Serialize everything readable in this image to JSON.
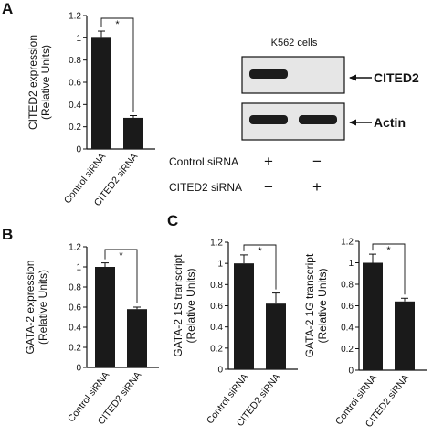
{
  "panels": {
    "A": "A",
    "B": "B",
    "C": "C"
  },
  "colors": {
    "bar": "#1a1a1a",
    "axis": "#111111",
    "blot_bg": "#e6e6e6",
    "band": "#1c1c1c"
  },
  "chart_data": [
    {
      "id": "A",
      "type": "bar",
      "categories": [
        "Control siRNA",
        "CITED2 siRNA"
      ],
      "values": [
        1.0,
        0.28
      ],
      "errors": [
        0.06,
        0.02
      ],
      "ylabel_lines": [
        "CITED2 expression",
        "(Relative Units)"
      ],
      "ylim": [
        0,
        1.2
      ],
      "yticks": [
        "0",
        "0.2",
        "0.4",
        "0.6",
        "0.8",
        "1",
        "1.2"
      ],
      "significance": "*"
    },
    {
      "id": "B",
      "type": "bar",
      "categories": [
        "Control siRNA",
        "CITED2 siRNA"
      ],
      "values": [
        1.0,
        0.58
      ],
      "errors": [
        0.04,
        0.02
      ],
      "ylabel_lines": [
        "GATA-2 expression",
        "(Relative Units)"
      ],
      "ylim": [
        0,
        1.2
      ],
      "yticks": [
        "0",
        "0.2",
        "0.4",
        "0.6",
        "0.8",
        "1",
        "1.2"
      ],
      "significance": "*"
    },
    {
      "id": "C1",
      "type": "bar",
      "categories": [
        "Control siRNA",
        "CITED2 siRNA"
      ],
      "values": [
        1.0,
        0.62
      ],
      "errors": [
        0.08,
        0.1
      ],
      "ylabel_lines": [
        "GATA-2 1S transcript",
        "(Relative Units)"
      ],
      "ylim": [
        0,
        1.2
      ],
      "yticks": [
        "0",
        "0.2",
        "0.4",
        "0.6",
        "0.8",
        "1",
        "1.2"
      ],
      "significance": "*"
    },
    {
      "id": "C2",
      "type": "bar",
      "categories": [
        "Control siRNA",
        "CITED2 siRNA"
      ],
      "values": [
        1.0,
        0.64
      ],
      "errors": [
        0.08,
        0.03
      ],
      "ylabel_lines": [
        "GATA-2 1G transcript",
        "(Relative Units)"
      ],
      "ylim": [
        0,
        1.2
      ],
      "yticks": [
        "0",
        "0.2",
        "0.4",
        "0.6",
        "0.8",
        "1",
        "1.2"
      ],
      "significance": "*"
    }
  ],
  "blot": {
    "title": "K562 cells",
    "rows": [
      {
        "label": "CITED2",
        "lanes": [
          1,
          0
        ]
      },
      {
        "label": "Actin",
        "lanes": [
          1,
          1
        ]
      }
    ],
    "conditions": [
      {
        "label": "Control siRNA",
        "signs": [
          "+",
          "−"
        ]
      },
      {
        "label": "CITED2 siRNA",
        "signs": [
          "−",
          "+"
        ]
      }
    ]
  }
}
